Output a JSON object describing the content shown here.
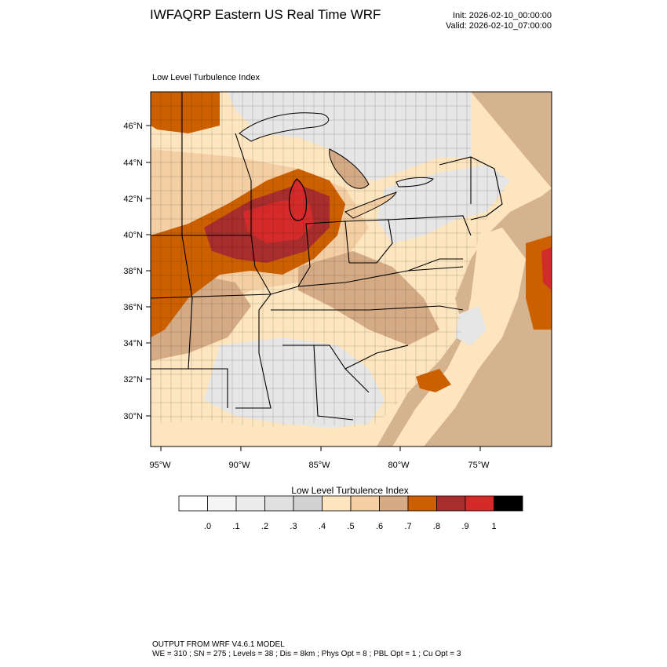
{
  "header": {
    "title": "IWFAQRP Eastern US Real Time WRF",
    "init": "Init: 2026-02-10_00:00:00",
    "valid": "Valid: 2026-02-10_07:00:00"
  },
  "map": {
    "field_label": "Low Level Turbulence Index",
    "lat_ticks": [
      "46°N",
      "44°N",
      "42°N",
      "40°N",
      "38°N",
      "36°N",
      "34°N",
      "32°N",
      "30°N"
    ],
    "lon_ticks": [
      "95°W",
      "90°W",
      "85°W",
      "80°W",
      "75°W"
    ],
    "colors": {
      "ocean_low": "#e6e6e6",
      "ocean_mid": "#d4b38e",
      "tan_light": "#fde5c0",
      "tan_mid": "#f5cfa4",
      "tan_dark": "#d5ab86",
      "orange": "#cc6000",
      "brown": "#a82e2e",
      "red": "#d42a2a"
    }
  },
  "colorbar": {
    "title": "Low Level Turbulence Index",
    "labels": [
      ".0",
      ".1",
      ".2",
      ".3",
      ".4",
      ".5",
      ".6",
      ".7",
      ".8",
      ".9",
      "1"
    ],
    "colors": [
      "#ffffff",
      "#f5f5f5",
      "#ececec",
      "#e0e0e0",
      "#d2d2d2",
      "#fde5c0",
      "#f5cfa4",
      "#d5ab86",
      "#cc6000",
      "#a82e2e",
      "#d42a2a",
      "#000000"
    ]
  },
  "footer": {
    "line1": "OUTPUT FROM WRF V4.6.1 MODEL",
    "line2": "WE = 310 ; SN = 275 ; Levels = 38 ; Dis = 8km ; Phys Opt = 8 ; PBL Opt = 1 ; Cu Opt = 3"
  }
}
